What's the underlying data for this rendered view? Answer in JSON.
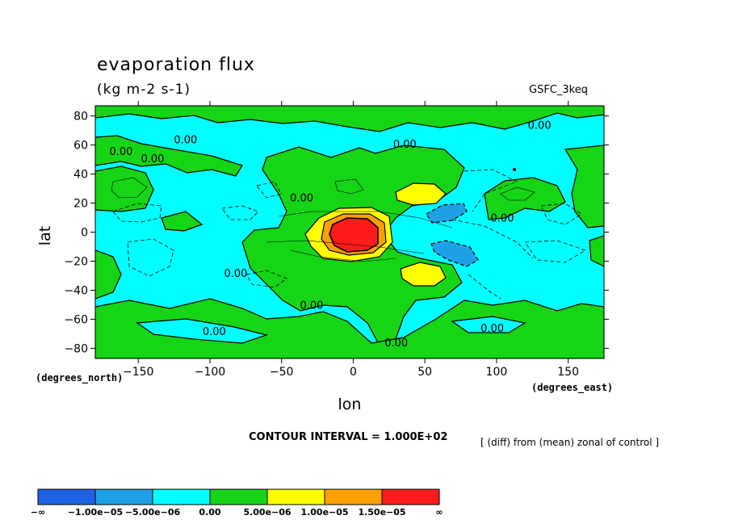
{
  "header": {
    "title": "evaporation flux",
    "units": "(kg m-2 s-1)",
    "run_name": "GSFC_3keq"
  },
  "footer": {
    "contour_interval": "CONTOUR INTERVAL = 1.000E+02",
    "note": "[ (diff) from (mean) zonal of control ]"
  },
  "chart_data": {
    "type": "heatmap",
    "title": "evaporation flux",
    "subtitle": "(kg m-2 s-1)",
    "xlabel": "lon",
    "ylabel": "lat",
    "x_units": "(degrees_east)",
    "y_units": "(degrees_north)",
    "xlim": [
      -180,
      175
    ],
    "ylim": [
      -87,
      87
    ],
    "x_ticks": [
      -150,
      -100,
      -50,
      0,
      50,
      100,
      150
    ],
    "x_tick_labels": [
      "−150",
      "−100",
      "−50",
      "0",
      "50",
      "100",
      "150"
    ],
    "y_ticks": [
      80,
      60,
      40,
      20,
      0,
      -20,
      -40,
      -60,
      -80
    ],
    "y_tick_labels": [
      "80",
      "60",
      "40",
      "20",
      "0",
      "−20",
      "−40",
      "−60",
      "−80"
    ],
    "contour_labels": [
      {
        "text": "0.00",
        "lon": -117,
        "lat": 64
      },
      {
        "text": "0.00",
        "lon": -162,
        "lat": 56
      },
      {
        "text": "0.00",
        "lon": -140,
        "lat": 51
      },
      {
        "text": "0.00",
        "lon": 130,
        "lat": 74
      },
      {
        "text": "0.00",
        "lon": 36,
        "lat": 61
      },
      {
        "text": "0.00",
        "lon": -36,
        "lat": 24
      },
      {
        "text": "0.00",
        "lon": 104,
        "lat": 10
      },
      {
        "text": "0.00",
        "lon": -82,
        "lat": -28
      },
      {
        "text": "0.00",
        "lon": -29,
        "lat": -50
      },
      {
        "text": "0.00",
        "lon": 97,
        "lat": -66
      },
      {
        "text": "0.00",
        "lon": -97,
        "lat": -68
      },
      {
        "text": "0.00",
        "lon": 30,
        "lat": -76
      }
    ],
    "colorbar": {
      "colors": [
        "#1e63e6",
        "#1ea0e6",
        "#00ffff",
        "#16d416",
        "#ffff00",
        "#ffa000",
        "#ff1b1b"
      ],
      "labels": [
        "−∞",
        "−1.00e−05",
        "−5.00e−06",
        "0.00",
        "5.00e−06",
        "1.00e−05",
        "1.50e−05",
        "∞"
      ]
    },
    "features": [
      {
        "name": "red maximum",
        "lon": 0,
        "lat": 0,
        "level": "> 1.50e-05",
        "color": "#ff1b1b"
      },
      {
        "name": "northern yellow lobe",
        "lon": 47,
        "lat": 26,
        "level": "5.00e-06 to 1.00e-05",
        "color": "#ffff00"
      },
      {
        "name": "southern yellow lobe",
        "lon": 52,
        "lat": -30,
        "level": "5.00e-06 to 1.00e-05",
        "color": "#ffff00"
      },
      {
        "name": "northern blue minimum",
        "lon": 65,
        "lat": 12,
        "level": "-1.00e-05 to -5.00e-06",
        "color": "#1ea0e6"
      },
      {
        "name": "southern blue minimum",
        "lon": 70,
        "lat": -14,
        "level": "-1.00e-05 to -5.00e-06",
        "color": "#1ea0e6"
      }
    ]
  }
}
